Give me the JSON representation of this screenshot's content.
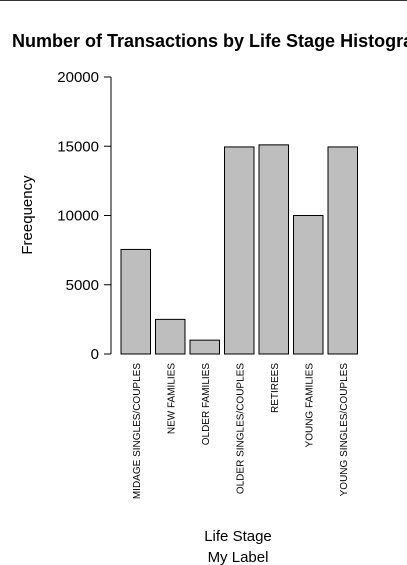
{
  "chart_data": {
    "type": "bar",
    "title": "Number of Transactions by Life Stage Histogram",
    "xlabel": "Life Stage",
    "sublabel": "My Label",
    "ylabel": "Freequency",
    "ylim": [
      0,
      20000
    ],
    "yticks": [
      "0",
      "5000",
      "10000",
      "15000",
      "20000"
    ],
    "categories": [
      "MIDAGE SINGLES/COUPLES",
      "NEW FAMILIES",
      "OLDER FAMILIES",
      "OLDER SINGLES/COUPLES",
      "RETIREES",
      "YOUNG FAMILIES",
      "YOUNG SINGLES/COUPLES"
    ],
    "values": [
      7550,
      2500,
      1000,
      14950,
      15100,
      10000,
      14950
    ],
    "bar_fill": "#bebebe",
    "bar_stroke": "#000000",
    "grid": false,
    "legend": "none"
  }
}
